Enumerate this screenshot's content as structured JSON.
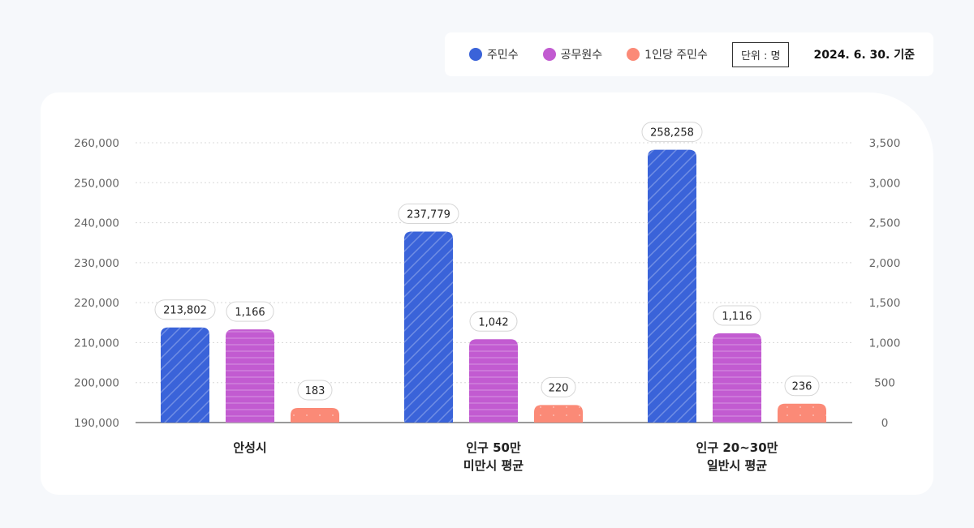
{
  "legend": {
    "items": [
      {
        "label": "주민수",
        "color": "#3a63d9"
      },
      {
        "label": "공무원수",
        "color": "#c25bd1"
      },
      {
        "label": "1인당 주민수",
        "color": "#fb8a77"
      }
    ],
    "unit": "단위 : 명",
    "date": "2024. 6. 30. 기준"
  },
  "chart_data": {
    "type": "bar",
    "title": "",
    "categories": [
      [
        "안성시"
      ],
      [
        "인구 50만",
        "미만시 평균"
      ],
      [
        "인구 20~30만",
        "일반시 평균"
      ]
    ],
    "series": [
      {
        "name": "주민수",
        "axis": "left",
        "values": [
          213802,
          237779,
          258258
        ],
        "labels": [
          "213,802",
          "237,779",
          "258,258"
        ],
        "color": "#3a63d9",
        "pattern": "diagonal"
      },
      {
        "name": "공무원수",
        "axis": "right",
        "values": [
          1166,
          1042,
          1116
        ],
        "labels": [
          "1,166",
          "1,042",
          "1,116"
        ],
        "color": "#c25bd1",
        "pattern": "horizontal"
      },
      {
        "name": "1인당 주민수",
        "axis": "right",
        "values": [
          183,
          220,
          236
        ],
        "labels": [
          "183",
          "220",
          "236"
        ],
        "color": "#fb8a77",
        "pattern": "dots"
      }
    ],
    "y_left": {
      "min": 190000,
      "max": 260000,
      "ticks": [
        "190,000",
        "200,000",
        "210,000",
        "220,000",
        "230,000",
        "240,000",
        "250,000",
        "260,000"
      ]
    },
    "y_right": {
      "min": 0,
      "max": 3500,
      "ticks": [
        "0",
        "500",
        "1,000",
        "1,500",
        "2,000",
        "2,500",
        "3,000",
        "3,500"
      ]
    },
    "grid": true,
    "legend_position": "top-right"
  }
}
